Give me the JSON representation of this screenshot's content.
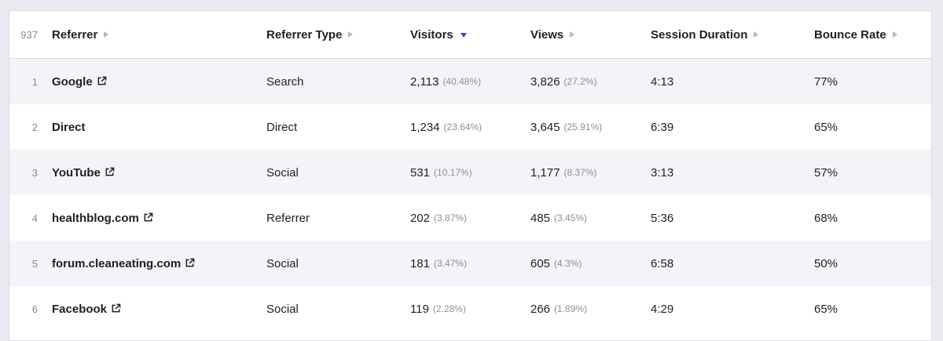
{
  "table": {
    "total_count": "937",
    "columns": {
      "referrer": "Referrer",
      "referrer_type": "Referrer Type",
      "visitors": "Visitors",
      "views": "Views",
      "session_duration": "Session Duration",
      "bounce_rate": "Bounce Rate"
    },
    "sorted_by": "visitors",
    "accent_color": "#5a3bb0",
    "rows": [
      {
        "index": "1",
        "referrer": "Google",
        "external": true,
        "type": "Search",
        "visitors": "2,113",
        "visitors_pct": "(40.48%)",
        "views": "3,826",
        "views_pct": "(27.2%)",
        "duration": "4:13",
        "bounce": "77%"
      },
      {
        "index": "2",
        "referrer": "Direct",
        "external": false,
        "type": "Direct",
        "visitors": "1,234",
        "visitors_pct": "(23.64%)",
        "views": "3,645",
        "views_pct": "(25.91%)",
        "duration": "6:39",
        "bounce": "65%"
      },
      {
        "index": "3",
        "referrer": "YouTube",
        "external": true,
        "type": "Social",
        "visitors": "531",
        "visitors_pct": "(10.17%)",
        "views": "1,177",
        "views_pct": "(8.37%)",
        "duration": "3:13",
        "bounce": "57%"
      },
      {
        "index": "4",
        "referrer": "healthblog.com",
        "external": true,
        "type": "Referrer",
        "visitors": "202",
        "visitors_pct": "(3.87%)",
        "views": "485",
        "views_pct": "(3.45%)",
        "duration": "5:36",
        "bounce": "68%"
      },
      {
        "index": "5",
        "referrer": "forum.cleaneating.com",
        "external": true,
        "type": "Social",
        "visitors": "181",
        "visitors_pct": "(3.47%)",
        "views": "605",
        "views_pct": "(4.3%)",
        "duration": "6:58",
        "bounce": "50%"
      },
      {
        "index": "6",
        "referrer": "Facebook",
        "external": true,
        "type": "Social",
        "visitors": "119",
        "visitors_pct": "(2.28%)",
        "views": "266",
        "views_pct": "(1.89%)",
        "duration": "4:29",
        "bounce": "65%"
      }
    ]
  }
}
